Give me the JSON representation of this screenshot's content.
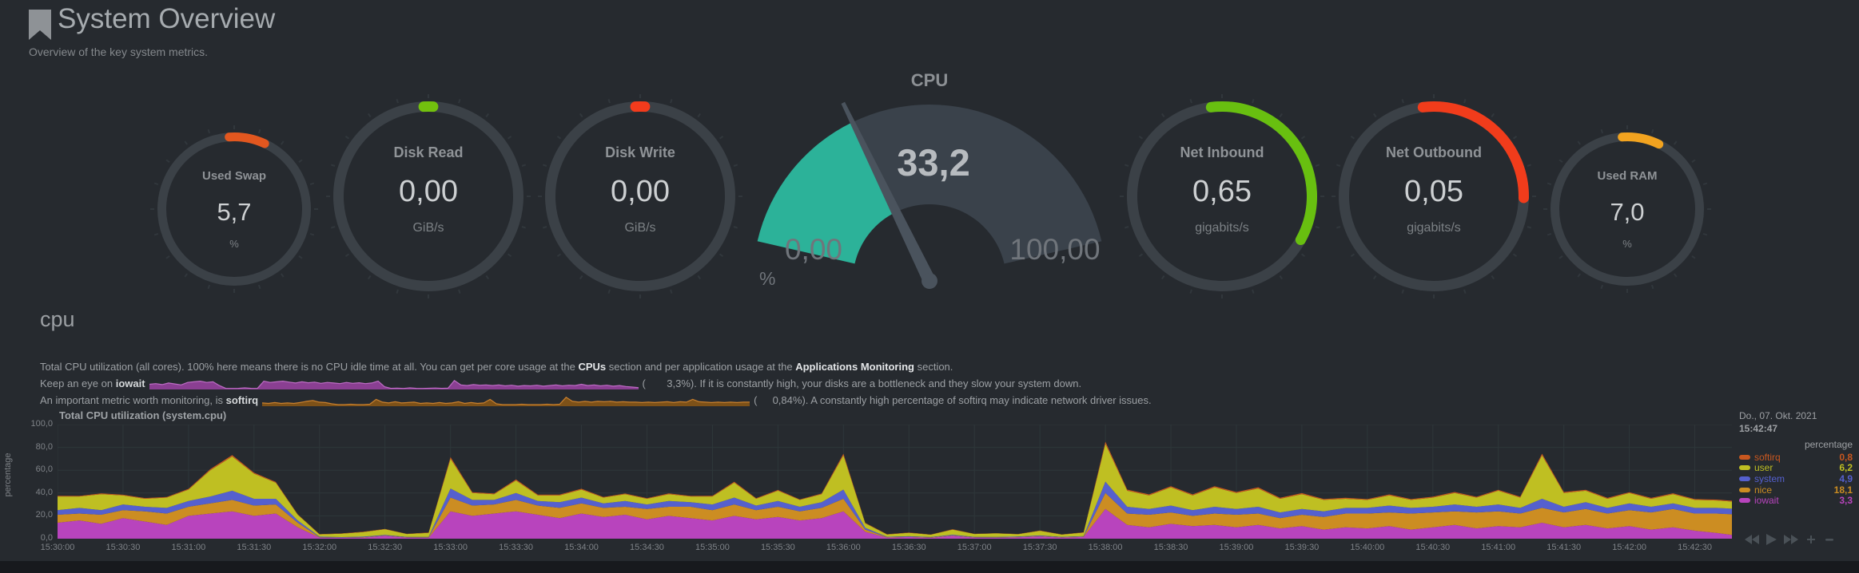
{
  "page": {
    "title": "System Overview",
    "subtitle": "Overview of the key system metrics."
  },
  "colors": {
    "background": "#262a2f",
    "ring_track": "#3b4147",
    "grid": "#2e373a",
    "text_muted": "#9ca0a4"
  },
  "gauges": [
    {
      "id": "used-swap",
      "title": "Used Swap",
      "value": "5,7",
      "unit": "%",
      "arc_color": "#e2571f",
      "arc_start": -4,
      "arc_end": 25,
      "size": "small"
    },
    {
      "id": "disk-read",
      "title": "Disk Read",
      "value": "0,00",
      "unit": "GiB/s",
      "arc_color": "#72c00e",
      "arc_start": -3,
      "arc_end": 3,
      "size": "medium"
    },
    {
      "id": "disk-write",
      "title": "Disk Write",
      "value": "0,00",
      "unit": "GiB/s",
      "arc_color": "#f23b1c",
      "arc_start": -3,
      "arc_end": 3,
      "size": "medium"
    },
    {
      "id": "net-inbound",
      "title": "Net Inbound",
      "value": "0,65",
      "unit": "gigabits/s",
      "arc_color": "#68bf10",
      "arc_start": -7,
      "arc_end": 119,
      "size": "medium"
    },
    {
      "id": "net-outbound",
      "title": "Net Outbound",
      "value": "0,05",
      "unit": "gigabits/s",
      "arc_color": "#f13c1b",
      "arc_start": -7,
      "arc_end": 91,
      "size": "medium"
    },
    {
      "id": "used-ram",
      "title": "Used RAM",
      "value": "7,0",
      "unit": "%",
      "arc_color": "#f2a31f",
      "arc_start": -4,
      "arc_end": 26,
      "size": "small"
    }
  ],
  "cpu_gauge": {
    "title": "CPU",
    "value": "33,2",
    "min": "0,00",
    "max": "100,00",
    "unit": "%",
    "percent": 33.2,
    "fill_color": "#2cb299",
    "track_color": "#3a424b",
    "needle_color": "#4a535d"
  },
  "section": {
    "header": "cpu",
    "desc1_pre": "Total CPU utilization (all cores). 100% here means there is no CPU idle time at all. You can get per core usage at the ",
    "desc1_link1": "CPUs",
    "desc1_mid": " section and per application usage at the ",
    "desc1_link2": "Applications Monitoring",
    "desc1_post": " section.",
    "desc2_pre": "Keep an eye on ",
    "desc2_bold": "iowait",
    "desc2_paren": "(",
    "desc2_value": "3,3%",
    "desc2_post": "). If it is constantly high, your disks are a bottleneck and they slow your system down.",
    "desc3_pre": "An important metric worth monitoring, is ",
    "desc3_bold": "softirq",
    "desc3_paren": "(",
    "desc3_value": "0,84%",
    "desc3_post": "). A constantly high percentage of softirq may indicate network driver issues."
  },
  "chart_data": {
    "type": "area",
    "stacked": true,
    "title": "Total CPU utilization (system.cpu)",
    "ylabel": "percentage",
    "ylim": [
      0,
      100
    ],
    "ytick_labels": [
      "0,0",
      "20,0",
      "40,0",
      "60,0",
      "80,0",
      "100,0"
    ],
    "ytick_values": [
      0,
      20,
      40,
      60,
      80,
      100
    ],
    "x_start": "15:30:00",
    "x_end": "15:42:47",
    "x_total_seconds": 767,
    "x_step_seconds": 10,
    "xtick_labels": [
      "15:30:00",
      "15:30:30",
      "15:31:00",
      "15:31:30",
      "15:32:00",
      "15:32:30",
      "15:33:00",
      "15:33:30",
      "15:34:00",
      "15:34:30",
      "15:35:00",
      "15:35:30",
      "15:36:00",
      "15:36:30",
      "15:37:00",
      "15:37:30",
      "15:38:00",
      "15:38:30",
      "15:39:00",
      "15:39:30",
      "15:40:00",
      "15:40:30",
      "15:41:00",
      "15:41:30",
      "15:42:00",
      "15:42:30"
    ],
    "xtick_interval_seconds": 30,
    "legend_position": "right",
    "grid": true,
    "series": [
      {
        "name": "iowait",
        "color": "#b844bd",
        "values": [
          14,
          16,
          13,
          18,
          15,
          12,
          20,
          22,
          24,
          20,
          22,
          10,
          1,
          0.8,
          1,
          2.5,
          1,
          0.8,
          24,
          20,
          22,
          24,
          21,
          18,
          22,
          19,
          21,
          17,
          20,
          18,
          16,
          20,
          17,
          19,
          16,
          18,
          24,
          6,
          1,
          1.5,
          0.8,
          2.5,
          1,
          0.8,
          1.2,
          2,
          1,
          1.5,
          26,
          12,
          10,
          13,
          11,
          12,
          10,
          12,
          9,
          11,
          8,
          10,
          9,
          11,
          8,
          10,
          12,
          9,
          11,
          10,
          14,
          10,
          12,
          9,
          11,
          8,
          10,
          7,
          5,
          3.3
        ]
      },
      {
        "name": "nice",
        "color": "#cc8d22",
        "values": [
          7,
          6,
          8,
          7,
          9,
          10,
          8,
          9,
          10,
          9,
          8,
          4,
          0.3,
          0.2,
          0.3,
          0.3,
          0.2,
          0.3,
          12,
          9,
          8,
          10,
          8,
          9,
          9,
          8,
          7,
          9,
          8,
          10,
          9,
          10,
          8,
          9,
          8,
          9,
          11,
          2,
          0.3,
          0.2,
          0.3,
          0.4,
          0.2,
          0.3,
          0.3,
          0.4,
          0.2,
          0.3,
          14,
          10,
          11,
          10,
          9,
          10,
          11,
          10,
          9,
          10,
          11,
          12,
          13,
          12,
          14,
          13,
          12,
          14,
          13,
          12,
          13,
          13,
          14,
          13,
          14,
          15,
          16,
          15,
          17,
          18.1
        ]
      },
      {
        "name": "system",
        "color": "#5560ce",
        "values": [
          4,
          5,
          4,
          5,
          4,
          5,
          5,
          6,
          8,
          6,
          5,
          2,
          0.5,
          0.4,
          0.5,
          0.5,
          0.4,
          0.5,
          8,
          5,
          4,
          6,
          4,
          5,
          5,
          4,
          5,
          4,
          5,
          4,
          5,
          6,
          4,
          5,
          4,
          5,
          8,
          1.5,
          0.4,
          0.5,
          0.4,
          0.6,
          0.4,
          0.5,
          0.4,
          0.5,
          0.4,
          0.5,
          10,
          6,
          5,
          6,
          5,
          6,
          5,
          6,
          5,
          5,
          5,
          5,
          5,
          6,
          5,
          5,
          6,
          5,
          6,
          5,
          8,
          5,
          6,
          5,
          6,
          5,
          5,
          5,
          5,
          4.9
        ]
      },
      {
        "name": "user",
        "color": "#bfbf22",
        "values": [
          12,
          10,
          14,
          8,
          7,
          9,
          10,
          23,
          30,
          22,
          14,
          5,
          2,
          3,
          4,
          5,
          2.5,
          3.5,
          26,
          6,
          5,
          11,
          5,
          6,
          7,
          5,
          6,
          5,
          6,
          5,
          7,
          13,
          6,
          9,
          6,
          7,
          30,
          4,
          2,
          3,
          2,
          4.5,
          2.5,
          3,
          2,
          4,
          2,
          3,
          33,
          14,
          12,
          16,
          13,
          17,
          14,
          16,
          12,
          13,
          10,
          8,
          7,
          9,
          7,
          8,
          10,
          8,
          12,
          9,
          38,
          12,
          10,
          8,
          9,
          7,
          8,
          7,
          6.5,
          6.2
        ]
      },
      {
        "name": "softirq",
        "color": "#c8571f",
        "values": [
          0.6,
          0.5,
          0.7,
          0.5,
          0.6,
          0.5,
          0.7,
          1,
          1.2,
          0.8,
          0.7,
          0.4,
          0.2,
          0.2,
          0.3,
          0.2,
          0.2,
          0.3,
          1.5,
          0.8,
          0.6,
          0.9,
          0.6,
          0.7,
          0.8,
          0.5,
          0.6,
          0.5,
          0.7,
          0.5,
          0.6,
          0.9,
          0.5,
          0.7,
          0.5,
          0.6,
          1.5,
          0.4,
          0.2,
          0.2,
          0.2,
          0.3,
          0.2,
          0.2,
          0.2,
          0.3,
          0.2,
          0.3,
          2,
          1,
          0.8,
          1,
          0.8,
          1,
          0.9,
          1,
          0.8,
          0.9,
          0.8,
          0.8,
          0.7,
          0.8,
          0.7,
          0.8,
          0.9,
          0.7,
          0.9,
          0.8,
          1.5,
          0.9,
          0.8,
          0.7,
          0.8,
          0.7,
          0.8,
          0.7,
          0.8,
          0.8
        ]
      }
    ]
  },
  "legend": {
    "date": "Do., 07. Okt. 2021",
    "time": "15:42:47",
    "unit_label": "percentage",
    "items": [
      {
        "name": "softirq",
        "value": "0,8",
        "color": "#c8571f"
      },
      {
        "name": "user",
        "value": "6,2",
        "color": "#bfbf22"
      },
      {
        "name": "system",
        "value": "4,9",
        "color": "#5560ce"
      },
      {
        "name": "nice",
        "value": "18,1",
        "color": "#cc8d22"
      },
      {
        "name": "iowait",
        "value": "3,3",
        "color": "#b844bd"
      }
    ]
  }
}
